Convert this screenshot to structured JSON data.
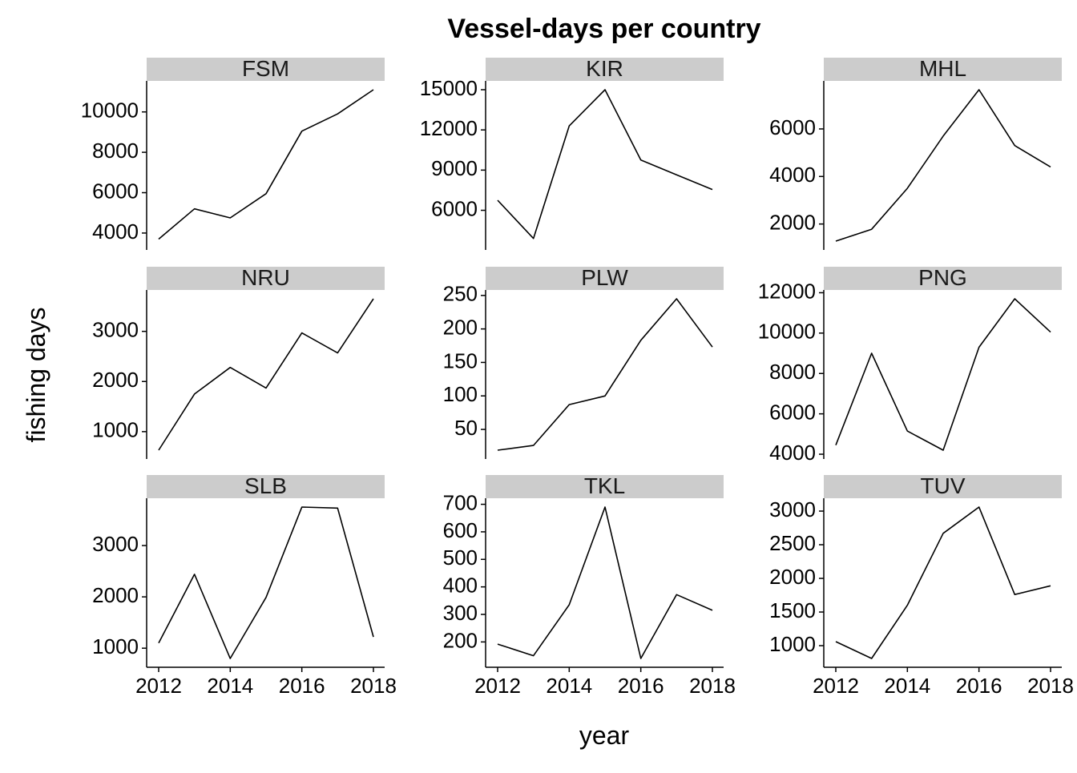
{
  "title": "Vessel-days per country",
  "xlabel": "year",
  "ylabel": "fishing days",
  "chart_data": {
    "type": "line",
    "layout": "facet_wrap 3x3",
    "x": [
      2012,
      2013,
      2014,
      2015,
      2016,
      2017,
      2018
    ],
    "x_ticks": [
      2012,
      2014,
      2016,
      2018
    ],
    "colors": {
      "line": "#000000",
      "strip": "#cccccc",
      "axis": "#000000"
    },
    "panels": [
      {
        "label": "FSM",
        "y_ticks": [
          4000,
          6000,
          8000,
          10000
        ],
        "ylim": [
          3600,
          11100
        ],
        "values": [
          3700,
          5200,
          4750,
          5950,
          9050,
          9900,
          11100
        ]
      },
      {
        "label": "KIR",
        "y_ticks": [
          6000,
          9000,
          12000,
          15000
        ],
        "ylim": [
          3700,
          15000
        ],
        "values": [
          6750,
          3900,
          12300,
          15000,
          9750,
          8650,
          7550
        ]
      },
      {
        "label": "MHL",
        "y_ticks": [
          2000,
          4000,
          6000
        ],
        "ylim": [
          1280,
          7650
        ],
        "values": [
          1280,
          1780,
          3500,
          5700,
          7650,
          5300,
          4400
        ]
      },
      {
        "label": "NRU",
        "y_ticks": [
          1000,
          2000,
          3000
        ],
        "ylim": [
          630,
          3650
        ],
        "values": [
          630,
          1750,
          2280,
          1870,
          2970,
          2570,
          3650
        ]
      },
      {
        "label": "PLW",
        "y_ticks": [
          50,
          100,
          150,
          200,
          250
        ],
        "ylim": [
          19,
          245
        ],
        "values": [
          19,
          26,
          87,
          100,
          183,
          245,
          173
        ]
      },
      {
        "label": "PNG",
        "y_ticks": [
          4000,
          6000,
          8000,
          10000,
          12000
        ],
        "ylim": [
          4200,
          11700
        ],
        "values": [
          4450,
          9000,
          5150,
          4200,
          9300,
          11700,
          10050
        ]
      },
      {
        "label": "SLB",
        "y_ticks": [
          1000,
          2000,
          3000
        ],
        "ylim": [
          800,
          3750
        ],
        "values": [
          1100,
          2440,
          800,
          1990,
          3750,
          3730,
          1220
        ]
      },
      {
        "label": "TKL",
        "y_ticks": [
          200,
          300,
          400,
          500,
          600,
          700
        ],
        "ylim": [
          140,
          690
        ],
        "values": [
          192,
          150,
          335,
          690,
          140,
          372,
          315
        ]
      },
      {
        "label": "TUV",
        "y_ticks": [
          1000,
          1500,
          2000,
          2500,
          3000
        ],
        "ylim": [
          810,
          3060
        ],
        "values": [
          1060,
          810,
          1600,
          2670,
          3060,
          1760,
          1890
        ]
      }
    ]
  }
}
